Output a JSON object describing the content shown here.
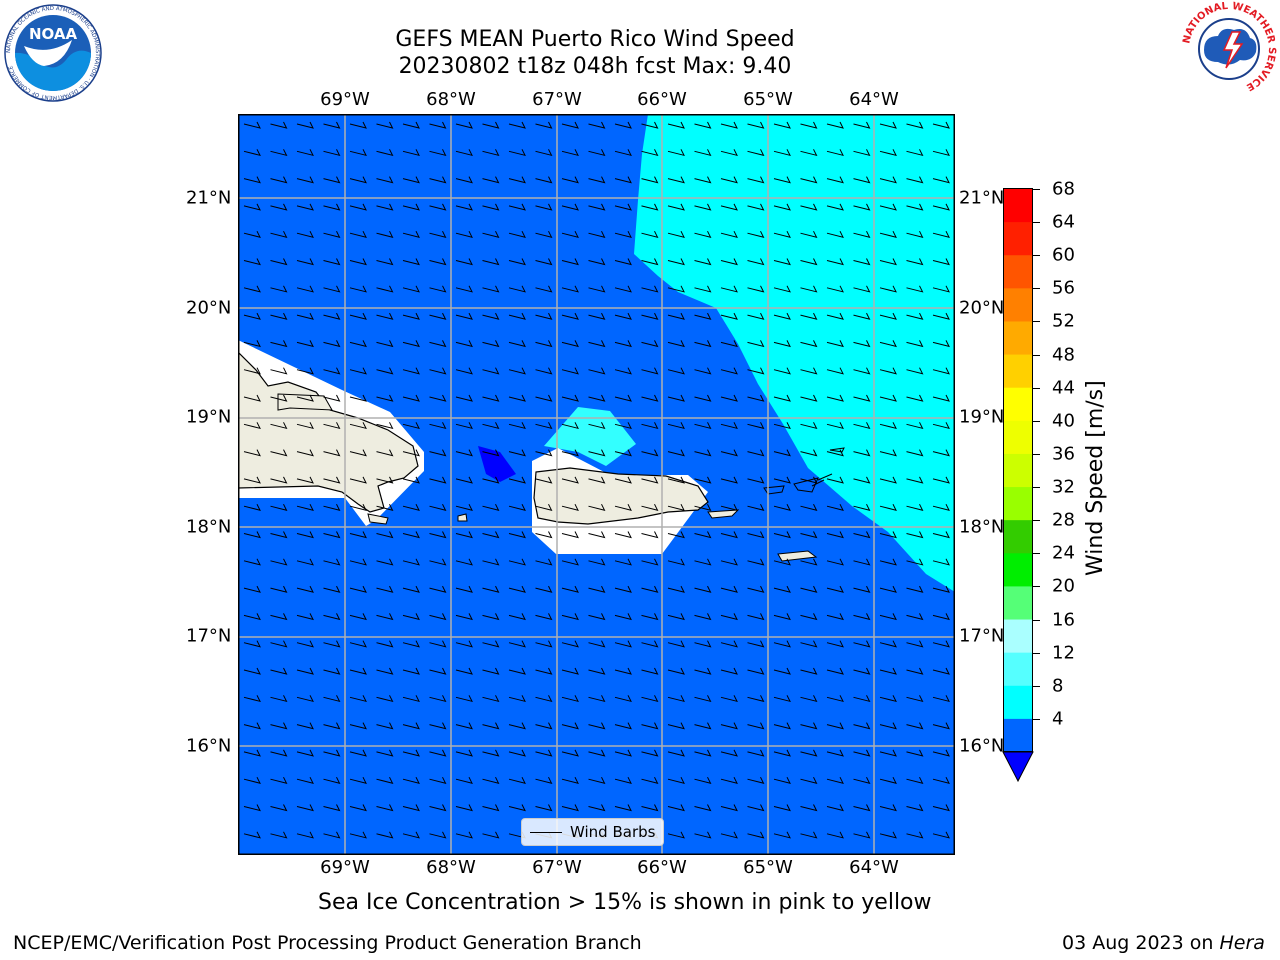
{
  "header": {
    "title_line1": "GEFS MEAN Puerto Rico Wind Speed",
    "title_line2": "20230802 t18z 048h fcst   Max: 9.40"
  },
  "logos": {
    "left": "NOAA",
    "left_ring_text": "NATIONAL OCEANIC AND ATMOSPHERIC ADMINISTRATION · U.S. DEPARTMENT OF COMMERCE",
    "right_ring_text": "NATIONAL WEATHER SERVICE"
  },
  "map": {
    "lon_labels": [
      "69°W",
      "68°W",
      "67°W",
      "66°W",
      "65°W",
      "64°W"
    ],
    "lat_labels": [
      "21°N",
      "20°N",
      "19°N",
      "18°N",
      "17°N",
      "16°N"
    ],
    "legend_label": "Wind Barbs",
    "colors": {
      "ocean_base": "#0066ff",
      "ocean_fast": "#00ffff",
      "ocean_faster": "#33ffff",
      "ocean_slow": "#0000ff",
      "land": "#eeede0",
      "masked": "#ffffff"
    }
  },
  "colorbar": {
    "title": "Wind Speed [m/s]",
    "ticks": [
      "68",
      "64",
      "60",
      "56",
      "52",
      "48",
      "44",
      "40",
      "36",
      "32",
      "28",
      "24",
      "20",
      "16",
      "12",
      "8",
      "4"
    ],
    "colors": [
      "#ff0000",
      "#ff2000",
      "#ff5500",
      "#ff8000",
      "#ffaa00",
      "#ffd000",
      "#ffff00",
      "#eeff00",
      "#ccff00",
      "#99ff00",
      "#33cc00",
      "#00ee00",
      "#55ff77",
      "#aaffff",
      "#55ffff",
      "#00ffff",
      "#0066ff"
    ],
    "under_color": "#0000ff"
  },
  "caption": "Sea Ice Concentration > 15% is shown in pink to yellow",
  "footer": {
    "left": "NCEP/EMC/Verification Post Processing Product Generation Branch",
    "right_date": "03 Aug 2023 on ",
    "right_machine": "Hera"
  }
}
